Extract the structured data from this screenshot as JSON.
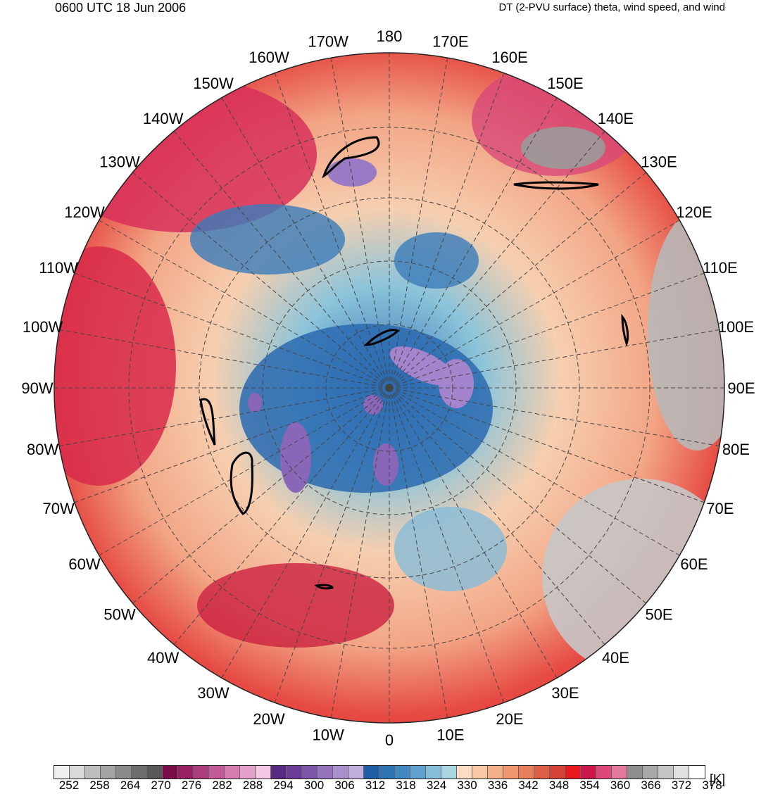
{
  "header": {
    "time_label": "0600 UTC 18 Jun 2006",
    "field_label": "DT (2-PVU surface) theta, wind speed, and wind"
  },
  "map": {
    "projection": "north polar stereographic",
    "center_lon_top": "180",
    "longitude_labels": [
      "180",
      "170E",
      "160E",
      "150E",
      "140E",
      "130E",
      "120E",
      "110E",
      "100E",
      "90E",
      "80E",
      "70E",
      "60E",
      "50E",
      "40E",
      "30E",
      "20E",
      "10E",
      "0",
      "10W",
      "20W",
      "30W",
      "40W",
      "50W",
      "60W",
      "70W",
      "80W",
      "90W",
      "100W",
      "110W",
      "120W",
      "130W",
      "140W",
      "150W",
      "160W",
      "170W"
    ],
    "jet_contour_color": "#000000",
    "coastline_color": "#3a3a3a"
  },
  "colorbar": {
    "unit": "[K]",
    "tick_labels": [
      "252",
      "258",
      "264",
      "270",
      "276",
      "282",
      "288",
      "294",
      "300",
      "306",
      "312",
      "318",
      "324",
      "330",
      "336",
      "342",
      "348",
      "354",
      "360",
      "366",
      "372",
      "378"
    ],
    "colors": [
      "#f0f0f0",
      "#d9d9d9",
      "#bdbdbd",
      "#a3a3a3",
      "#8a8a8a",
      "#6e6e6e",
      "#585858",
      "#7a0e4a",
      "#962062",
      "#ad3c7c",
      "#c25a96",
      "#d77cb0",
      "#e6a0cc",
      "#f4c8e4",
      "#5a2a82",
      "#6c3c96",
      "#7e56a8",
      "#9472bc",
      "#aa90cc",
      "#c0aedc",
      "#1e5fa6",
      "#2e74b4",
      "#4488c0",
      "#62a2cc",
      "#86bcd8",
      "#aad6e2",
      "#fbdcc4",
      "#f8c8a6",
      "#f4b088",
      "#ef986e",
      "#e87e5a",
      "#df6048",
      "#d8403a",
      "#e8191e",
      "#cc1548",
      "#dc4878",
      "#e4789a",
      "#8e8e8e",
      "#a8a8a8",
      "#c4c4c4",
      "#e0e0e0",
      "#ffffff"
    ]
  }
}
